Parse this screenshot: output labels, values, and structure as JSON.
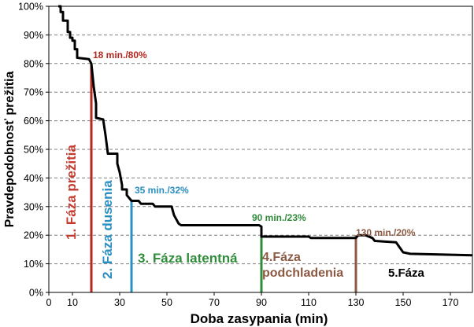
{
  "chart_data": {
    "type": "line",
    "title": "",
    "xlabel": "Doba zasypania (min)",
    "ylabel": "Pravdepodobnosť prežitia",
    "xlim": [
      0,
      180
    ],
    "ylim": [
      0,
      100
    ],
    "x_ticks": [
      0,
      10,
      30,
      50,
      70,
      90,
      110,
      130,
      150,
      170
    ],
    "x_tick_labels": [
      "0",
      "10",
      "30",
      "50",
      "70",
      "90",
      "110",
      "130",
      "150",
      "170"
    ],
    "y_ticks": [
      0,
      10,
      20,
      30,
      40,
      50,
      60,
      70,
      80,
      90,
      100
    ],
    "y_tick_labels": [
      "0%",
      "10%",
      "20%",
      "30%",
      "40%",
      "50%",
      "60%",
      "70%",
      "80%",
      "90%",
      "100%"
    ],
    "grid": "horizontal dashed",
    "series": [
      {
        "color": "#000000",
        "points": [
          [
            4,
            100
          ],
          [
            5,
            100
          ],
          [
            5,
            98
          ],
          [
            6,
            98
          ],
          [
            6,
            95
          ],
          [
            8,
            95
          ],
          [
            8,
            91
          ],
          [
            9,
            91
          ],
          [
            9,
            89
          ],
          [
            10,
            89
          ],
          [
            10,
            88
          ],
          [
            11,
            88
          ],
          [
            11,
            85
          ],
          [
            12,
            85
          ],
          [
            12,
            82
          ],
          [
            17,
            81.5
          ],
          [
            18,
            80
          ],
          [
            19,
            72
          ],
          [
            20,
            66
          ],
          [
            20,
            61
          ],
          [
            23,
            60.5
          ],
          [
            24,
            55
          ],
          [
            25,
            48.5
          ],
          [
            29,
            48.5
          ],
          [
            29,
            45
          ],
          [
            30,
            42
          ],
          [
            31,
            37.5
          ],
          [
            31,
            36
          ],
          [
            33,
            36
          ],
          [
            33,
            34
          ],
          [
            35,
            32
          ],
          [
            38,
            32
          ],
          [
            39,
            31
          ],
          [
            44,
            31
          ],
          [
            45,
            30
          ],
          [
            52,
            30
          ],
          [
            53,
            27
          ],
          [
            55,
            24
          ],
          [
            56,
            23.5
          ],
          [
            89,
            23.5
          ],
          [
            90,
            23
          ],
          [
            90,
            19.5
          ],
          [
            110,
            19.5
          ],
          [
            111,
            19
          ],
          [
            130,
            19
          ],
          [
            131,
            20
          ],
          [
            134,
            20
          ],
          [
            137,
            19
          ],
          [
            138,
            18
          ],
          [
            147,
            17.5
          ],
          [
            150,
            14
          ],
          [
            153,
            13.5
          ],
          [
            180,
            13
          ]
        ]
      }
    ],
    "markers": [
      {
        "x": 18,
        "y": 80,
        "label": "18 min./80%",
        "color": "#b5271f",
        "phase_label": "1. Fáza prežitia"
      },
      {
        "x": 35,
        "y": 32,
        "label": "35 min./32%",
        "color": "#2a8fc1",
        "phase_label": "2. Fáza dusenia"
      },
      {
        "x": 90,
        "y": 23,
        "label": "90 min./23%",
        "color": "#2f8c3a",
        "phase_label": "3. Fáza latentná"
      },
      {
        "x": 130,
        "y": 20,
        "label": "130 min./20%",
        "color": "#8c5a44",
        "phase_label": "4.Fáza podchladenia"
      }
    ],
    "extra_labels": [
      {
        "text": "5.Fáza",
        "color": "#000000"
      }
    ]
  }
}
